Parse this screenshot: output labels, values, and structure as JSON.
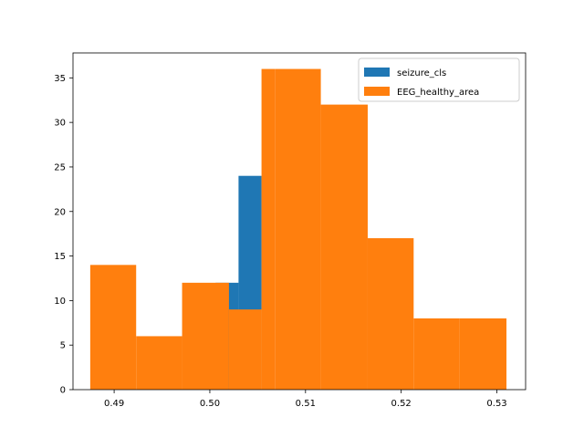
{
  "chart_data": {
    "type": "bar",
    "subtype": "overlaid-histogram",
    "title": "",
    "xlabel": "",
    "ylabel": "",
    "xlim": [
      0.4857,
      0.533
    ],
    "ylim": [
      0,
      37.8
    ],
    "grid": false,
    "legend_position": "upper-right",
    "x_ticks": [
      {
        "value": 0.49,
        "label": "0.49"
      },
      {
        "value": 0.5,
        "label": "0.50"
      },
      {
        "value": 0.51,
        "label": "0.51"
      },
      {
        "value": 0.52,
        "label": "0.52"
      },
      {
        "value": 0.53,
        "label": "0.53"
      }
    ],
    "y_ticks": [
      {
        "value": 0,
        "label": "0"
      },
      {
        "value": 5,
        "label": "5"
      },
      {
        "value": 10,
        "label": "10"
      },
      {
        "value": 15,
        "label": "15"
      },
      {
        "value": 20,
        "label": "20"
      },
      {
        "value": 25,
        "label": "25"
      },
      {
        "value": 30,
        "label": "30"
      },
      {
        "value": 35,
        "label": "35"
      }
    ],
    "series": [
      {
        "name": "seizure_cls",
        "color": "#1f77b4",
        "bin_edges": [
          0.5006,
          0.503,
          0.5054
        ],
        "counts": [
          12,
          24
        ]
      },
      {
        "name": "EEG_healthy_area",
        "color": "#ff7f0e",
        "bin_edges": [
          0.4875,
          0.4923,
          0.4971,
          0.502,
          0.5054,
          0.5068,
          0.5116,
          0.5165,
          0.5213,
          0.5261,
          0.531
        ],
        "counts": [
          14,
          6,
          12,
          9,
          36,
          36,
          32,
          17,
          8,
          8
        ]
      }
    ]
  }
}
